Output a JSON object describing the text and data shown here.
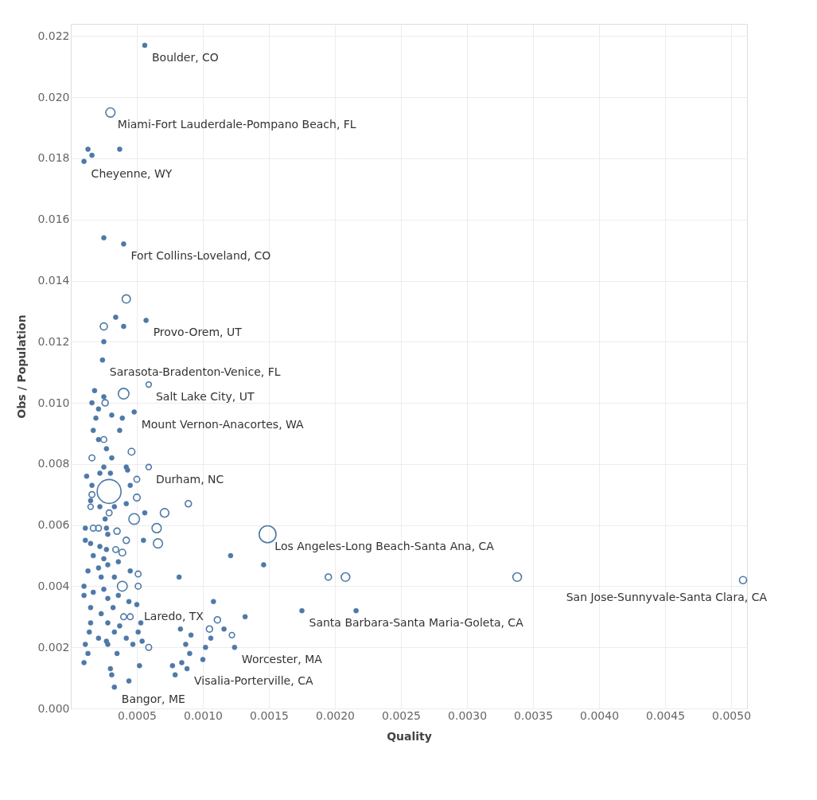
{
  "chart_data": {
    "type": "bubble",
    "xlabel": "Quality",
    "ylabel": "Obs / Population",
    "color": "#4e79a7",
    "marker": "circle",
    "grid": true,
    "legend": false,
    "xlim": [
      0,
      0.00512
    ],
    "ylim": [
      0,
      0.0224
    ],
    "xticks": [
      0.0005,
      {
        "value": 0.001,
        "label": "0.0010"
      },
      0.0015,
      {
        "value": 0.002,
        "label": "0.0020"
      },
      0.0025,
      {
        "value": 0.003,
        "label": "0.0030"
      },
      0.0035,
      {
        "value": 0.004,
        "label": "0.0040"
      },
      0.0045,
      {
        "value": 0.005,
        "label": "0.0050"
      }
    ],
    "yticks": [
      {
        "value": 0,
        "label": "0.000"
      },
      0.002,
      0.004,
      0.006,
      0.008,
      {
        "value": 0.01,
        "label": "0.010"
      },
      0.012,
      0.014,
      0.016,
      0.018,
      {
        "value": 0.02,
        "label": "0.020"
      },
      0.022
    ],
    "x": [
      0.00056,
      0.0003,
      0.00013,
      0.00016,
      0.00037,
      0.0001,
      0.00025,
      0.0004,
      0.00042,
      0.00034,
      0.00025,
      0.0004,
      0.00057,
      0.00025,
      0.00024,
      0.00059,
      0.0004,
      0.00018,
      0.00025,
      0.00016,
      0.00026,
      0.00021,
      0.00048,
      0.00031,
      0.00019,
      0.00039,
      0.00037,
      0.00017,
      0.00025,
      0.00021,
      0.00027,
      0.00046,
      0.00016,
      0.00031,
      0.00025,
      0.00022,
      0.00042,
      0.00043,
      0.00059,
      0.0003,
      0.00012,
      0.0005,
      0.00045,
      0.00016,
      0.00029,
      0.0005,
      0.00016,
      0.00015,
      0.00042,
      0.00033,
      0.00089,
      0.00015,
      0.00022,
      0.00029,
      0.00071,
      0.00056,
      0.00048,
      0.00026,
      0.00011,
      0.00017,
      0.00021,
      0.00027,
      0.00035,
      0.00065,
      0.00028,
      0.00042,
      0.00011,
      0.00055,
      0.00015,
      0.00066,
      0.00022,
      0.00027,
      0.00034,
      0.00039,
      0.00017,
      0.00025,
      0.00036,
      0.00021,
      0.00028,
      0.00013,
      0.00045,
      0.00051,
      0.00023,
      0.00033,
      0.00082,
      0.00051,
      0.00039,
      0.0001,
      0.00025,
      0.00017,
      0.0001,
      0.00036,
      0.00028,
      0.00044,
      0.0005,
      0.00108,
      0.00015,
      0.00032,
      0.00023,
      0.0004,
      0.00045,
      0.00111,
      0.00015,
      0.00028,
      0.00053,
      0.00132,
      0.00037,
      0.00105,
      0.00014,
      0.00083,
      0.00033,
      0.00051,
      0.00091,
      0.00116,
      0.00122,
      0.00021,
      0.00027,
      0.00042,
      0.00106,
      0.00054,
      0.00011,
      0.00028,
      0.00047,
      0.00059,
      0.00087,
      0.00102,
      0.00124,
      0.0009,
      0.00013,
      0.00035,
      0.001,
      0.0001,
      0.00052,
      0.00077,
      0.00084,
      0.0003,
      0.00088,
      0.00031,
      0.00079,
      0.00044,
      0.00033,
      0.00149,
      0.00121,
      0.00146,
      0.00195,
      0.00208,
      0.00338,
      0.00175,
      0.00216,
      0.00509
    ],
    "values": [
      0.0217,
      0.0195,
      0.0183,
      0.0181,
      0.0183,
      0.0179,
      0.0154,
      0.0152,
      0.0134,
      0.0128,
      0.0125,
      0.0125,
      0.0127,
      0.012,
      0.0114,
      0.0106,
      0.0103,
      0.0104,
      0.0102,
      0.01,
      0.01,
      0.0098,
      0.0097,
      0.0096,
      0.0095,
      0.0095,
      0.0091,
      0.0091,
      0.0088,
      0.0088,
      0.0085,
      0.0084,
      0.0082,
      0.0082,
      0.0079,
      0.0077,
      0.0079,
      0.0078,
      0.0079,
      0.0077,
      0.0076,
      0.0075,
      0.0073,
      0.0073,
      0.0071,
      0.0069,
      0.007,
      0.0068,
      0.0067,
      0.0066,
      0.0067,
      0.0066,
      0.0066,
      0.0064,
      0.0064,
      0.0064,
      0.0062,
      0.0062,
      0.0059,
      0.0059,
      0.0059,
      0.0059,
      0.0058,
      0.0059,
      0.0057,
      0.0055,
      0.0055,
      0.0055,
      0.0054,
      0.0054,
      0.0053,
      0.0052,
      0.0052,
      0.0051,
      0.005,
      0.0049,
      0.0048,
      0.0046,
      0.0047,
      0.0045,
      0.0045,
      0.0044,
      0.0043,
      0.0043,
      0.0043,
      0.004,
      0.004,
      0.004,
      0.0039,
      0.0038,
      0.0037,
      0.0037,
      0.0036,
      0.0035,
      0.0034,
      0.0035,
      0.0033,
      0.0033,
      0.0031,
      0.003,
      0.003,
      0.0029,
      0.0028,
      0.0028,
      0.0028,
      0.003,
      0.0027,
      0.0026,
      0.0025,
      0.0026,
      0.0025,
      0.0025,
      0.0024,
      0.0026,
      0.0024,
      0.0023,
      0.0022,
      0.0023,
      0.0023,
      0.0022,
      0.0021,
      0.0021,
      0.0021,
      0.002,
      0.0021,
      0.002,
      0.002,
      0.0018,
      0.0018,
      0.0018,
      0.0016,
      0.0015,
      0.0014,
      0.0014,
      0.0015,
      0.0013,
      0.0013,
      0.0011,
      0.0011,
      0.0009,
      0.0007,
      0.0057,
      0.005,
      0.0047,
      0.0043,
      0.0043,
      0.0043,
      0.0032,
      0.0032,
      0.0042
    ],
    "sizes": [
      0.04,
      0.15,
      0.04,
      0.04,
      0.04,
      0.04,
      0.04,
      0.04,
      0.12,
      0.04,
      0.09,
      0.04,
      0.04,
      0.04,
      0.04,
      0.05,
      0.2,
      0.04,
      0.04,
      0.04,
      0.07,
      0.04,
      0.04,
      0.04,
      0.04,
      0.04,
      0.04,
      0.04,
      0.06,
      0.04,
      0.04,
      0.08,
      0.06,
      0.04,
      0.04,
      0.04,
      0.04,
      0.04,
      0.05,
      0.04,
      0.04,
      0.06,
      0.04,
      0.04,
      1,
      0.08,
      0.06,
      0.04,
      0.04,
      0.04,
      0.07,
      0.05,
      0.04,
      0.06,
      0.13,
      0.04,
      0.2,
      0.04,
      0.04,
      0.06,
      0.06,
      0.04,
      0.07,
      0.15,
      0.04,
      0.07,
      0.04,
      0.04,
      0.04,
      0.15,
      0.04,
      0.04,
      0.06,
      0.08,
      0.04,
      0.04,
      0.04,
      0.04,
      0.04,
      0.04,
      0.04,
      0.06,
      0.04,
      0.04,
      0.04,
      0.06,
      0.17,
      0.04,
      0.04,
      0.04,
      0.04,
      0.04,
      0.04,
      0.04,
      0.04,
      0.04,
      0.04,
      0.04,
      0.04,
      0.06,
      0.06,
      0.07,
      0.04,
      0.04,
      0.04,
      0.04,
      0.04,
      0.07,
      0.04,
      0.04,
      0.04,
      0.04,
      0.04,
      0.04,
      0.05,
      0.04,
      0.04,
      0.04,
      0.04,
      0.04,
      0.04,
      0.04,
      0.04,
      0.06,
      0.04,
      0.04,
      0.04,
      0.04,
      0.04,
      0.04,
      0.04,
      0.04,
      0.04,
      0.04,
      0.04,
      0.04,
      0.04,
      0.04,
      0.04,
      0.04,
      0.04,
      0.5,
      0.04,
      0.04,
      0.07,
      0.13,
      0.13,
      0.04,
      0.04,
      0.09
    ],
    "annotations": [
      {
        "text": "Boulder, CO",
        "x": 0.00056,
        "y": 0.0217
      },
      {
        "text": "Miami-Fort Lauderdale-Pompano Beach, FL",
        "x": 0.0003,
        "y": 0.0195
      },
      {
        "text": "Cheyenne, WY",
        "x": 0.0001,
        "y": 0.0179
      },
      {
        "text": "Fort Collins-Loveland, CO",
        "x": 0.0004,
        "y": 0.0152
      },
      {
        "text": "Provo-Orem, UT",
        "x": 0.00057,
        "y": 0.0127
      },
      {
        "text": "Sarasota-Bradenton-Venice, FL",
        "x": 0.00024,
        "y": 0.0114
      },
      {
        "text": "Salt Lake City, UT",
        "x": 0.00059,
        "y": 0.0106
      },
      {
        "text": "Mount Vernon-Anacortes, WA",
        "x": 0.00048,
        "y": 0.0097
      },
      {
        "text": "Durham, NC",
        "x": 0.00059,
        "y": 0.0079
      },
      {
        "text": "Los Angeles-Long Beach-Santa Ana, CA",
        "x": 0.00149,
        "y": 0.0057
      },
      {
        "text": "San Jose-Sunnyvale-Santa Clara, CA",
        "x": 0.00509,
        "y": 0.0042
      },
      {
        "text": "Laredo, TX",
        "x": 0.0005,
        "y": 0.0034
      },
      {
        "text": "Santa Barbara-Santa Maria-Goleta, CA",
        "x": 0.00175,
        "y": 0.0032
      },
      {
        "text": "Worcester, MA",
        "x": 0.00124,
        "y": 0.002
      },
      {
        "text": "Visalia-Porterville, CA",
        "x": 0.00088,
        "y": 0.0013
      },
      {
        "text": "Bangor, ME",
        "x": 0.00033,
        "y": 0.0007
      }
    ]
  }
}
